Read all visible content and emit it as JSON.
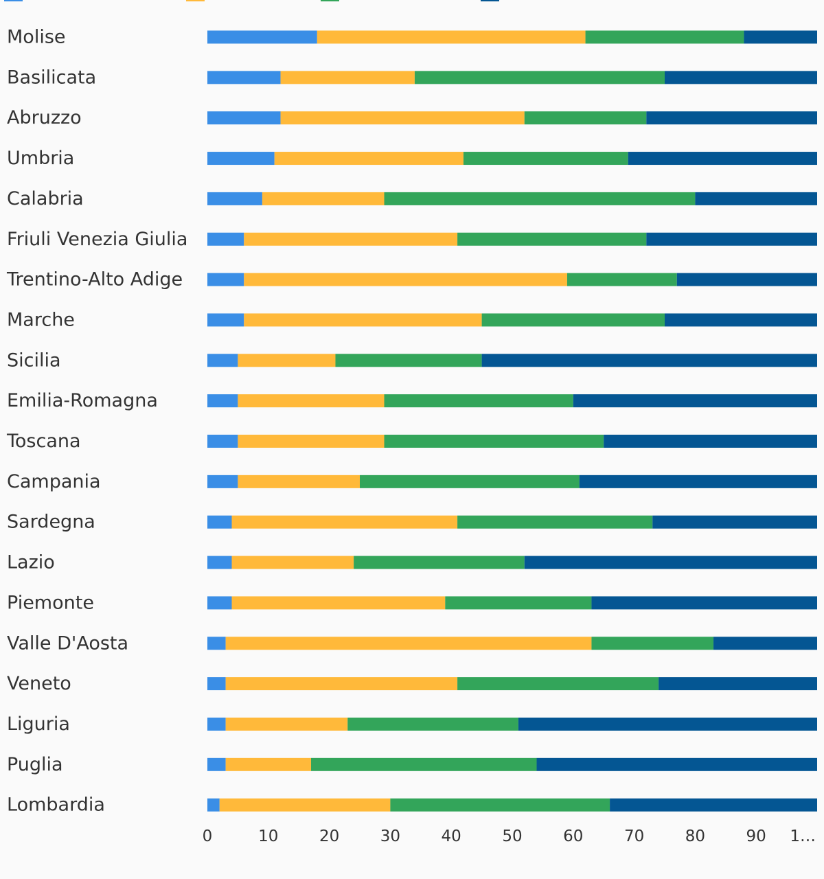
{
  "chart_data": {
    "type": "bar",
    "orientation": "horizontal",
    "stacked": true,
    "title": "",
    "xlabel": "",
    "ylabel": "",
    "xlim": [
      0,
      100
    ],
    "x_ticks": [
      "0",
      "10",
      "20",
      "30",
      "40",
      "50",
      "60",
      "70",
      "80",
      "90",
      "1…"
    ],
    "grid": false,
    "legend_position": "top",
    "categories": [
      "Molise",
      "Basilicata",
      "Abruzzo",
      "Umbria",
      "Calabria",
      "Friuli Venezia Giulia",
      "Trentino-Alto Adige",
      "Marche",
      "Sicilia",
      "Emilia-Romagna",
      "Toscana",
      "Campania",
      "Sardegna",
      "Lazio",
      "Piemonte",
      "Valle D'Aosta",
      "Veneto",
      "Liguria",
      "Puglia",
      "Lombardia"
    ],
    "series": [
      {
        "color": "#3a8ee6",
        "values": [
          18,
          12,
          12,
          11,
          9,
          6,
          6,
          6,
          5,
          5,
          5,
          5,
          4,
          4,
          4,
          3,
          3,
          3,
          3,
          2
        ]
      },
      {
        "color": "#ffb93a",
        "values": [
          44,
          22,
          40,
          31,
          20,
          35,
          53,
          39,
          16,
          24,
          24,
          20,
          37,
          20,
          35,
          60,
          38,
          20,
          14,
          28
        ]
      },
      {
        "color": "#33a55a",
        "values": [
          26,
          41,
          20,
          27,
          51,
          31,
          18,
          30,
          24,
          31,
          36,
          36,
          32,
          28,
          24,
          20,
          33,
          28,
          37,
          36
        ]
      },
      {
        "color": "#045693",
        "values": [
          12,
          25,
          28,
          31,
          20,
          28,
          23,
          25,
          55,
          40,
          35,
          39,
          27,
          48,
          37,
          17,
          26,
          49,
          46,
          34
        ]
      }
    ]
  }
}
